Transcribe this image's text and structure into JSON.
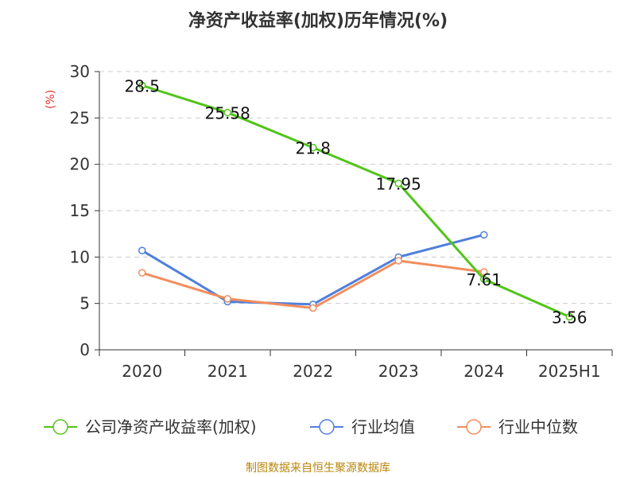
{
  "chart_data": {
    "type": "line",
    "title": "净资产收益率(加权)历年情况(%)",
    "ylabel": "(%)",
    "categories": [
      "2020",
      "2021",
      "2022",
      "2023",
      "2024",
      "2025H1"
    ],
    "ylim": [
      0,
      30
    ],
    "yticks": [
      "0",
      "5",
      "10",
      "15",
      "20",
      "25",
      "30"
    ],
    "grid": true,
    "legend_position": "bottom",
    "series": [
      {
        "name": "公司净资产收益率(加权)",
        "color": "#52c41a",
        "values": [
          28.5,
          25.58,
          21.8,
          17.95,
          7.61,
          3.56
        ],
        "labels": [
          "28.5",
          "25.58",
          "21.8",
          "17.95",
          "7.61",
          "3.56"
        ]
      },
      {
        "name": "行业均值",
        "color": "#4e7fdc",
        "values": [
          10.7,
          5.2,
          4.9,
          10.0,
          12.4,
          null
        ]
      },
      {
        "name": "行业中位数",
        "color": "#f28d5c",
        "values": [
          8.3,
          5.5,
          4.5,
          9.6,
          8.4,
          null
        ]
      }
    ]
  },
  "source": "制图数据来自恒生聚源数据库"
}
